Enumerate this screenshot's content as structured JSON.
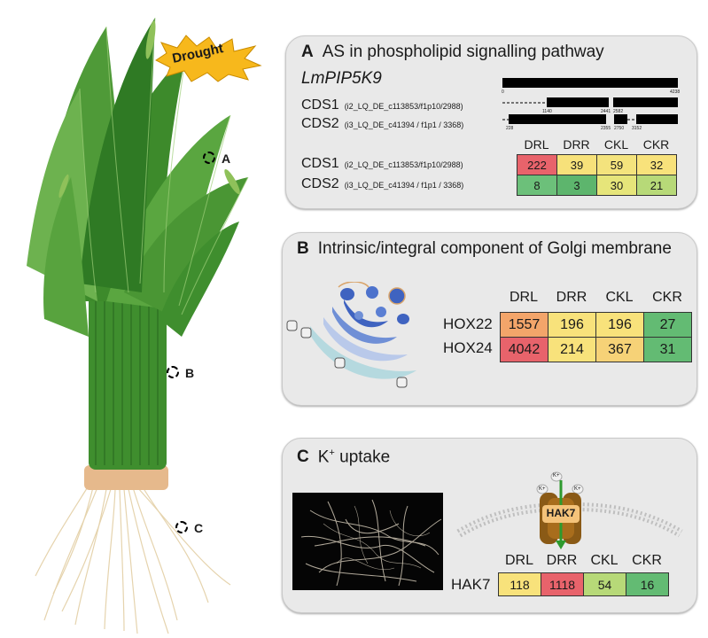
{
  "plant": {
    "stress_label": "Drought",
    "markers": [
      {
        "id": "A",
        "label": "A"
      },
      {
        "id": "B",
        "label": "B"
      },
      {
        "id": "C",
        "label": "C"
      }
    ]
  },
  "panelA": {
    "letter": "A",
    "title": "AS in phospholipid signalling pathway",
    "gene": "LmPIP5K9",
    "isoforms": [
      {
        "name": "CDS1",
        "id": "(i2_LQ_DE_c113853/f1p10/2988)"
      },
      {
        "name": "CDS2",
        "id": "(i3_LQ_DE_c41394 / f1p1 / 3368)"
      }
    ],
    "structure_ticks": {
      "gene": [
        "0",
        "4238"
      ],
      "cds1": [
        "1140",
        "2441",
        "2582"
      ],
      "cds2": [
        "228",
        "2355",
        "2750",
        "3152"
      ]
    },
    "columns": [
      "DRL",
      "DRR",
      "CKL",
      "CKR"
    ],
    "rows": [
      {
        "name": "CDS1",
        "id": "(i2_LQ_DE_c113853/f1p10/2988)",
        "values": [
          "222",
          "39",
          "59",
          "32"
        ],
        "colors": [
          "#e8636b",
          "#f7e17a",
          "#f4e37d",
          "#f8e27b"
        ]
      },
      {
        "name": "CDS2",
        "id": "(i3_LQ_DE_c41394 / f1p1 / 3368)",
        "values": [
          "8",
          "3",
          "30",
          "21"
        ],
        "colors": [
          "#6cc07a",
          "#5db56d",
          "#e6e57a",
          "#b7d978"
        ]
      }
    ]
  },
  "panelB": {
    "letter": "B",
    "title": "Intrinsic/integral component of Golgi membrane",
    "columns": [
      "DRL",
      "DRR",
      "CKL",
      "CKR"
    ],
    "rows": [
      {
        "name": "HOX22",
        "values": [
          "1557",
          "196",
          "196",
          "27"
        ],
        "colors": [
          "#f3a56a",
          "#f8e27b",
          "#f8e27b",
          "#63bb73"
        ]
      },
      {
        "name": "HOX24",
        "values": [
          "4042",
          "214",
          "367",
          "31"
        ],
        "colors": [
          "#e8636b",
          "#f8e27b",
          "#f6d277",
          "#63bb73"
        ]
      }
    ]
  },
  "panelC": {
    "letter": "C",
    "title_main": "K",
    "title_sup": "+",
    "title_rest": " uptake",
    "transporter": "HAK7",
    "ion": "K+",
    "columns": [
      "DRL",
      "DRR",
      "CKL",
      "CKR"
    ],
    "rows": [
      {
        "name": "HAK7",
        "values": [
          "118",
          "1118",
          "54",
          "16"
        ],
        "colors": [
          "#f8e27b",
          "#e8636b",
          "#b7d978",
          "#63bb73"
        ]
      }
    ]
  }
}
